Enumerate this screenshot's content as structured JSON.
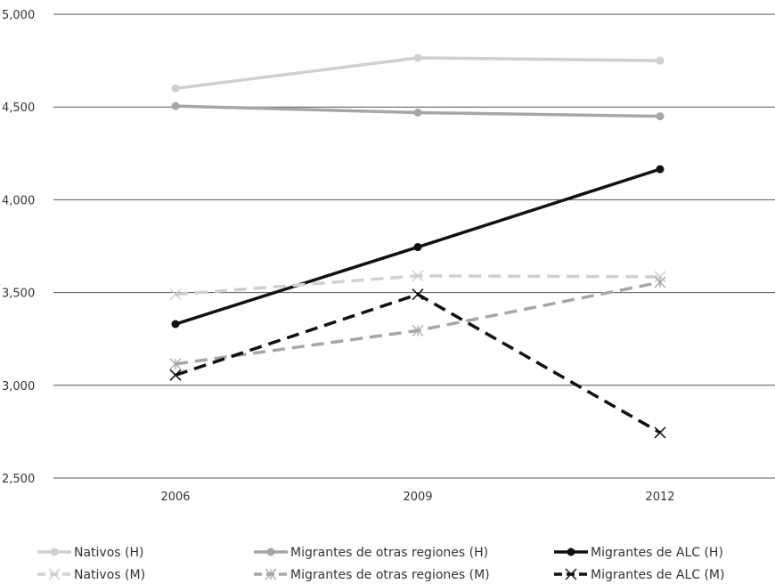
{
  "chart_data": {
    "type": "line",
    "title": "",
    "xlabel": "",
    "ylabel": "",
    "categories": [
      "2006",
      "2009",
      "2012"
    ],
    "ylim": [
      2500,
      5000
    ],
    "yticks": [
      2500,
      3000,
      3500,
      4000,
      4500,
      5000
    ],
    "ytick_labels": [
      "2,500",
      "3,000",
      "3,500",
      "4,000",
      "4,500",
      "5,000"
    ],
    "grid": "horizontal",
    "legend_position": "bottom",
    "series": [
      {
        "name": "Nativos (H)",
        "values": [
          4600,
          4765,
          4750
        ],
        "color": "#d0d0d0",
        "dash": "solid",
        "marker": "circle"
      },
      {
        "name": "Migrantes de otras regiones (H)",
        "values": [
          4505,
          4470,
          4450
        ],
        "color": "#a6a6a6",
        "dash": "solid",
        "marker": "circle"
      },
      {
        "name": "Migrantes de ALC (H)",
        "values": [
          3330,
          3745,
          4165
        ],
        "color": "#111111",
        "dash": "solid",
        "marker": "circle"
      },
      {
        "name": "Nativos (M)",
        "values": [
          3490,
          3590,
          3585
        ],
        "color": "#d0d0d0",
        "dash": "dashed",
        "marker": "x"
      },
      {
        "name": "Migrantes de otras regiones (M)",
        "values": [
          3115,
          3295,
          3555
        ],
        "color": "#a6a6a6",
        "dash": "dashed",
        "marker": "star"
      },
      {
        "name": "Migrantes de ALC (M)",
        "values": [
          3055,
          3490,
          2745
        ],
        "color": "#111111",
        "dash": "dashed",
        "marker": "x"
      }
    ]
  }
}
